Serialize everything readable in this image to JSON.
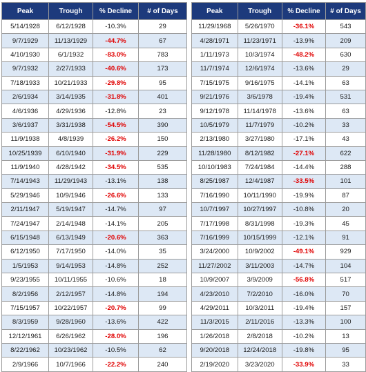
{
  "columns": [
    "Peak",
    "Trough",
    "% Decline",
    "# of Days"
  ],
  "highlight_color": "#e00000",
  "header_color": "#1d3a7c",
  "left_table": [
    {
      "peak": "5/14/1928",
      "trough": "6/12/1928",
      "decline": "-10.3%",
      "days": "29",
      "red": false
    },
    {
      "peak": "9/7/1929",
      "trough": "11/13/1929",
      "decline": "-44.7%",
      "days": "67",
      "red": true
    },
    {
      "peak": "4/10/1930",
      "trough": "6/1/1932",
      "decline": "-83.0%",
      "days": "783",
      "red": true
    },
    {
      "peak": "9/7/1932",
      "trough": "2/27/1933",
      "decline": "-40.6%",
      "days": "173",
      "red": true
    },
    {
      "peak": "7/18/1933",
      "trough": "10/21/1933",
      "decline": "-29.8%",
      "days": "95",
      "red": true
    },
    {
      "peak": "2/6/1934",
      "trough": "3/14/1935",
      "decline": "-31.8%",
      "days": "401",
      "red": true
    },
    {
      "peak": "4/6/1936",
      "trough": "4/29/1936",
      "decline": "-12.8%",
      "days": "23",
      "red": false
    },
    {
      "peak": "3/6/1937",
      "trough": "3/31/1938",
      "decline": "-54.5%",
      "days": "390",
      "red": true
    },
    {
      "peak": "11/9/1938",
      "trough": "4/8/1939",
      "decline": "-26.2%",
      "days": "150",
      "red": true
    },
    {
      "peak": "10/25/1939",
      "trough": "6/10/1940",
      "decline": "-31.9%",
      "days": "229",
      "red": true
    },
    {
      "peak": "11/9/1940",
      "trough": "4/28/1942",
      "decline": "-34.5%",
      "days": "535",
      "red": true
    },
    {
      "peak": "7/14/1943",
      "trough": "11/29/1943",
      "decline": "-13.1%",
      "days": "138",
      "red": false
    },
    {
      "peak": "5/29/1946",
      "trough": "10/9/1946",
      "decline": "-26.6%",
      "days": "133",
      "red": true
    },
    {
      "peak": "2/11/1947",
      "trough": "5/19/1947",
      "decline": "-14.7%",
      "days": "97",
      "red": false
    },
    {
      "peak": "7/24/1947",
      "trough": "2/14/1948",
      "decline": "-14.1%",
      "days": "205",
      "red": false
    },
    {
      "peak": "6/15/1948",
      "trough": "6/13/1949",
      "decline": "-20.6%",
      "days": "363",
      "red": true
    },
    {
      "peak": "6/12/1950",
      "trough": "7/17/1950",
      "decline": "-14.0%",
      "days": "35",
      "red": false
    },
    {
      "peak": "1/5/1953",
      "trough": "9/14/1953",
      "decline": "-14.8%",
      "days": "252",
      "red": false
    },
    {
      "peak": "9/23/1955",
      "trough": "10/11/1955",
      "decline": "-10.6%",
      "days": "18",
      "red": false
    },
    {
      "peak": "8/2/1956",
      "trough": "2/12/1957",
      "decline": "-14.8%",
      "days": "194",
      "red": false
    },
    {
      "peak": "7/15/1957",
      "trough": "10/22/1957",
      "decline": "-20.7%",
      "days": "99",
      "red": true
    },
    {
      "peak": "8/3/1959",
      "trough": "9/28/1960",
      "decline": "-13.6%",
      "days": "422",
      "red": false
    },
    {
      "peak": "12/12/1961",
      "trough": "6/26/1962",
      "decline": "-28.0%",
      "days": "196",
      "red": true
    },
    {
      "peak": "8/22/1962",
      "trough": "10/23/1962",
      "decline": "-10.5%",
      "days": "62",
      "red": false
    },
    {
      "peak": "2/9/1966",
      "trough": "10/7/1966",
      "decline": "-22.2%",
      "days": "240",
      "red": true
    }
  ],
  "right_table": [
    {
      "peak": "11/29/1968",
      "trough": "5/26/1970",
      "decline": "-36.1%",
      "days": "543",
      "red": true
    },
    {
      "peak": "4/28/1971",
      "trough": "11/23/1971",
      "decline": "-13.9%",
      "days": "209",
      "red": false
    },
    {
      "peak": "1/11/1973",
      "trough": "10/3/1974",
      "decline": "-48.2%",
      "days": "630",
      "red": true
    },
    {
      "peak": "11/7/1974",
      "trough": "12/6/1974",
      "decline": "-13.6%",
      "days": "29",
      "red": false
    },
    {
      "peak": "7/15/1975",
      "trough": "9/16/1975",
      "decline": "-14.1%",
      "days": "63",
      "red": false
    },
    {
      "peak": "9/21/1976",
      "trough": "3/6/1978",
      "decline": "-19.4%",
      "days": "531",
      "red": false
    },
    {
      "peak": "9/12/1978",
      "trough": "11/14/1978",
      "decline": "-13.6%",
      "days": "63",
      "red": false
    },
    {
      "peak": "10/5/1979",
      "trough": "11/7/1979",
      "decline": "-10.2%",
      "days": "33",
      "red": false
    },
    {
      "peak": "2/13/1980",
      "trough": "3/27/1980",
      "decline": "-17.1%",
      "days": "43",
      "red": false
    },
    {
      "peak": "11/28/1980",
      "trough": "8/12/1982",
      "decline": "-27.1%",
      "days": "622",
      "red": true
    },
    {
      "peak": "10/10/1983",
      "trough": "7/24/1984",
      "decline": "-14.4%",
      "days": "288",
      "red": false
    },
    {
      "peak": "8/25/1987",
      "trough": "12/4/1987",
      "decline": "-33.5%",
      "days": "101",
      "red": true
    },
    {
      "peak": "7/16/1990",
      "trough": "10/11/1990",
      "decline": "-19.9%",
      "days": "87",
      "red": false
    },
    {
      "peak": "10/7/1997",
      "trough": "10/27/1997",
      "decline": "-10.8%",
      "days": "20",
      "red": false
    },
    {
      "peak": "7/17/1998",
      "trough": "8/31/1998",
      "decline": "-19.3%",
      "days": "45",
      "red": false
    },
    {
      "peak": "7/16/1999",
      "trough": "10/15/1999",
      "decline": "-12.1%",
      "days": "91",
      "red": false
    },
    {
      "peak": "3/24/2000",
      "trough": "10/9/2002",
      "decline": "-49.1%",
      "days": "929",
      "red": true
    },
    {
      "peak": "11/27/2002",
      "trough": "3/11/2003",
      "decline": "-14.7%",
      "days": "104",
      "red": false
    },
    {
      "peak": "10/9/2007",
      "trough": "3/9/2009",
      "decline": "-56.8%",
      "days": "517",
      "red": true
    },
    {
      "peak": "4/23/2010",
      "trough": "7/2/2010",
      "decline": "-16.0%",
      "days": "70",
      "red": false
    },
    {
      "peak": "4/29/2011",
      "trough": "10/3/2011",
      "decline": "-19.4%",
      "days": "157",
      "red": false
    },
    {
      "peak": "11/3/2015",
      "trough": "2/11/2016",
      "decline": "-13.3%",
      "days": "100",
      "red": false
    },
    {
      "peak": "1/26/2018",
      "trough": "2/8/2018",
      "decline": "-10.2%",
      "days": "13",
      "red": false
    },
    {
      "peak": "9/20/2018",
      "trough": "12/24/2018",
      "decline": "-19.8%",
      "days": "95",
      "red": false
    },
    {
      "peak": "2/19/2020",
      "trough": "3/23/2020",
      "decline": "-33.9%",
      "days": "33",
      "red": true
    }
  ]
}
